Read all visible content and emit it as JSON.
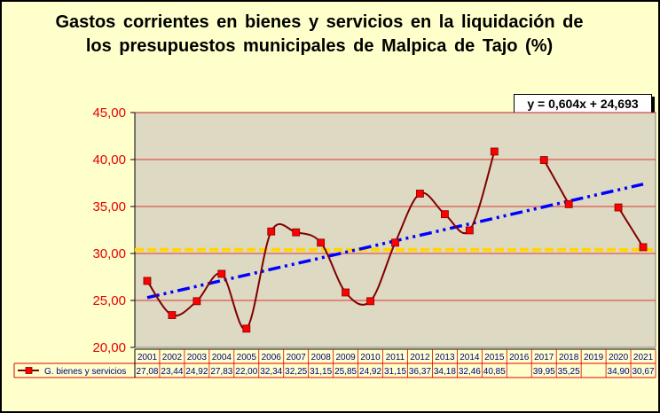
{
  "chart_data": {
    "type": "line",
    "title": "Gastos corrientes en bienes y servicios en la liquidación de los presupuestos municipales de Malpica de Tajo (%)",
    "categories": [
      "2001",
      "2002",
      "2003",
      "2004",
      "2005",
      "2006",
      "2007",
      "2008",
      "2009",
      "2010",
      "2011",
      "2012",
      "2013",
      "2014",
      "2015",
      "2016",
      "2017",
      "2018",
      "2019",
      "2020",
      "2021"
    ],
    "series": [
      {
        "name": "G. bienes y servicios",
        "values": [
          27.08,
          23.44,
          24.92,
          27.83,
          22.0,
          32.34,
          32.25,
          31.15,
          25.85,
          24.92,
          31.15,
          36.37,
          34.18,
          32.46,
          40.85,
          null,
          39.95,
          35.25,
          null,
          34.9,
          30.67
        ],
        "labels": [
          "27,08",
          "23,44",
          "24,92",
          "27,83",
          "22,00",
          "32,34",
          "32,25",
          "31,15",
          "25,85",
          "24,92",
          "31,15",
          "36,37",
          "34,18",
          "32,46",
          "40,85",
          "",
          "39,95",
          "35,25",
          "",
          "34,90",
          "30,67"
        ],
        "color": "#800000",
        "marker_color": "#ff0000"
      }
    ],
    "trendline": {
      "equation": "y = 0,604x + 24,693",
      "slope": 0.604,
      "intercept": 24.693,
      "color": "#0000ff"
    },
    "average_line": {
      "value": 30.4,
      "color": "#ffd700"
    },
    "ylim": [
      20,
      45
    ],
    "yticks": [
      "20,00",
      "25,00",
      "30,00",
      "35,00",
      "40,00",
      "45,00"
    ],
    "ytick_values": [
      20,
      25,
      30,
      35,
      40,
      45
    ],
    "grid": true,
    "legend": "bottom-table",
    "plot_bg": "#ddd9c3",
    "page_bg": "#ffffcc"
  }
}
